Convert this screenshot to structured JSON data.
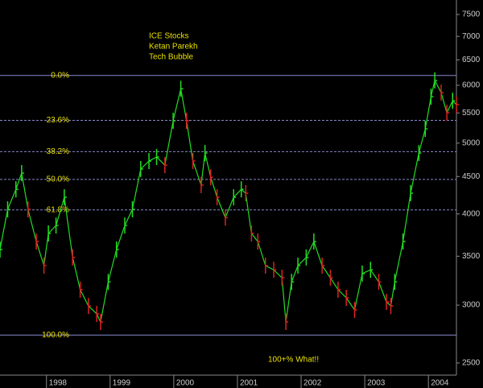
{
  "chart_data": {
    "type": "price-bars",
    "annotations": [
      "ICE Stocks",
      "Ketan Parekh",
      "Tech Bubble"
    ],
    "callout": "100+% What!!",
    "log_scale": true,
    "xlim": [
      1997.27,
      2004.44
    ],
    "xticks": [
      1998,
      1999,
      2000,
      2001,
      2002,
      2003,
      2004
    ],
    "ylim": [
      2406,
      7851
    ],
    "yticks": [
      2500,
      3000,
      3500,
      4000,
      4500,
      5000,
      5500,
      6000,
      6500,
      7000,
      7500
    ],
    "up_color": "#22dd22",
    "down_color": "#dd2222",
    "x": [
      1997.27,
      1997.39,
      1997.52,
      1997.61,
      1997.71,
      1997.84,
      1997.96,
      1998.03,
      1998.15,
      1998.28,
      1998.41,
      1998.53,
      1998.66,
      1998.79,
      1998.85,
      1998.97,
      1999.1,
      1999.23,
      1999.35,
      1999.48,
      1999.61,
      1999.73,
      1999.86,
      1999.99,
      2000.11,
      2000.2,
      2000.3,
      2000.43,
      2000.49,
      2000.58,
      2000.68,
      2000.81,
      2000.94,
      2001.06,
      2001.13,
      2001.22,
      2001.32,
      2001.44,
      2001.57,
      2001.7,
      2001.76,
      2001.85,
      2001.95,
      2002.08,
      2002.2,
      2002.33,
      2002.46,
      2002.58,
      2002.71,
      2002.84,
      2002.96,
      2003.09,
      2003.22,
      2003.34,
      2003.41,
      2003.47,
      2003.6,
      2003.72,
      2003.85,
      2003.95,
      2004.04,
      2004.1,
      2004.2,
      2004.29,
      2004.38,
      2004.44
    ],
    "values": [
      3575,
      4058,
      4322,
      4549,
      4058,
      3666,
      3398,
      3761,
      3856,
      4215,
      3487,
      3150,
      2992,
      2918,
      2845,
      3228,
      3575,
      3856,
      4058,
      4608,
      4725,
      4786,
      4665,
      5365,
      5934,
      5365,
      4725,
      4380,
      4846,
      4490,
      4215,
      3953,
      4215,
      4322,
      4270,
      3761,
      3666,
      3398,
      3353,
      3270,
      2845,
      3228,
      3398,
      3487,
      3666,
      3398,
      3270,
      3150,
      3070,
      2955,
      3314,
      3353,
      3228,
      3031,
      2992,
      3228,
      3666,
      4270,
      4846,
      5230,
      5788,
      6092,
      5863,
      5501,
      5714,
      5646
    ],
    "fib": {
      "high": 6188,
      "low": 2730,
      "color": "#8888cc",
      "levels": [
        {
          "value": 0,
          "label": "0.0%"
        },
        {
          "value": 23.6,
          "label": "23.6%"
        },
        {
          "value": 38.2,
          "label": "38.2%"
        },
        {
          "value": 50,
          "label": "50.0%"
        },
        {
          "value": 61.8,
          "label": "61.8%"
        },
        {
          "value": 100,
          "label": "100.0%"
        }
      ]
    }
  }
}
